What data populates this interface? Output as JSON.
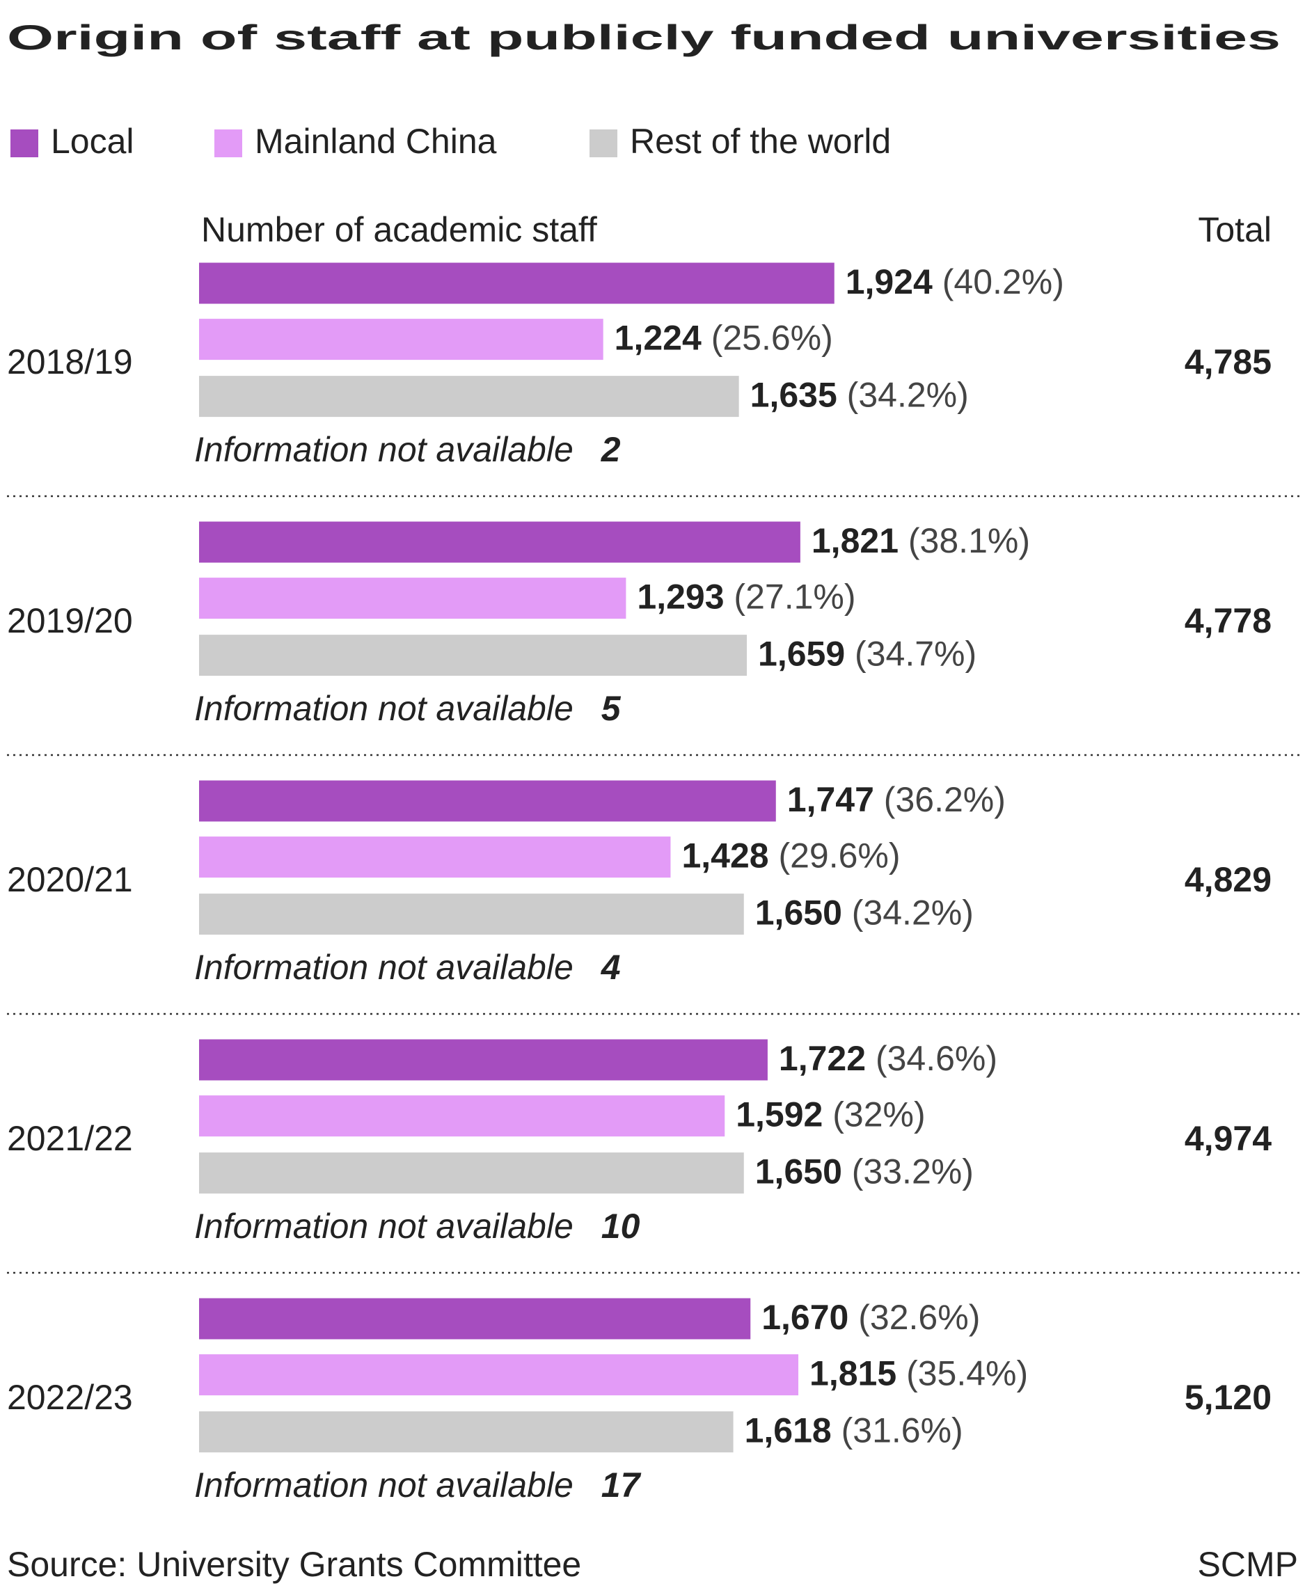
{
  "chart_data": {
    "type": "grouped-hbar",
    "title": "Origin of staff at publicly funded universities",
    "value_axis_label": "Number of academic staff",
    "total_header": "Total",
    "categories": [
      "2018/19",
      "2019/20",
      "2020/21",
      "2021/22",
      "2022/23"
    ],
    "series": [
      {
        "name": "Local",
        "color": "#a64dbf",
        "values": [
          1924,
          1821,
          1747,
          1722,
          1670
        ],
        "value_labels": [
          "1,924",
          "1,821",
          "1,747",
          "1,722",
          "1,670"
        ],
        "shares": [
          40.2,
          38.1,
          36.2,
          34.6,
          32.6
        ],
        "share_labels": [
          "(40.2%)",
          "(38.1%)",
          "(36.2%)",
          "(34.6%)",
          "(32.6%)"
        ]
      },
      {
        "name": "Mainland China",
        "color": "#e39bf7",
        "values": [
          1224,
          1293,
          1428,
          1592,
          1815
        ],
        "value_labels": [
          "1,224",
          "1,293",
          "1,428",
          "1,592",
          "1,815"
        ],
        "shares": [
          25.6,
          27.1,
          29.6,
          32,
          35.4
        ],
        "share_labels": [
          "(25.6%)",
          "(27.1%)",
          "(29.6%)",
          "(32%)",
          "(35.4%)"
        ]
      },
      {
        "name": "Rest of the world",
        "color": "#cccccc",
        "values": [
          1635,
          1659,
          1650,
          1650,
          1618
        ],
        "value_labels": [
          "1,635",
          "1,659",
          "1,650",
          "1,650",
          "1,618"
        ],
        "shares": [
          34.2,
          34.7,
          34.2,
          33.2,
          31.6
        ],
        "share_labels": [
          "(34.2%)",
          "(34.7%)",
          "(34.2%)",
          "(33.2%)",
          "(31.6%)"
        ]
      }
    ],
    "totals": [
      4785,
      4778,
      4829,
      4974,
      5120
    ],
    "total_labels": [
      "4,785",
      "4,778",
      "4,829",
      "4,974",
      "5,120"
    ],
    "na_label": "Information not available",
    "na_counts": [
      2,
      5,
      4,
      10,
      17
    ],
    "source": "Source: University Grants Committee",
    "credit": "SCMP"
  }
}
